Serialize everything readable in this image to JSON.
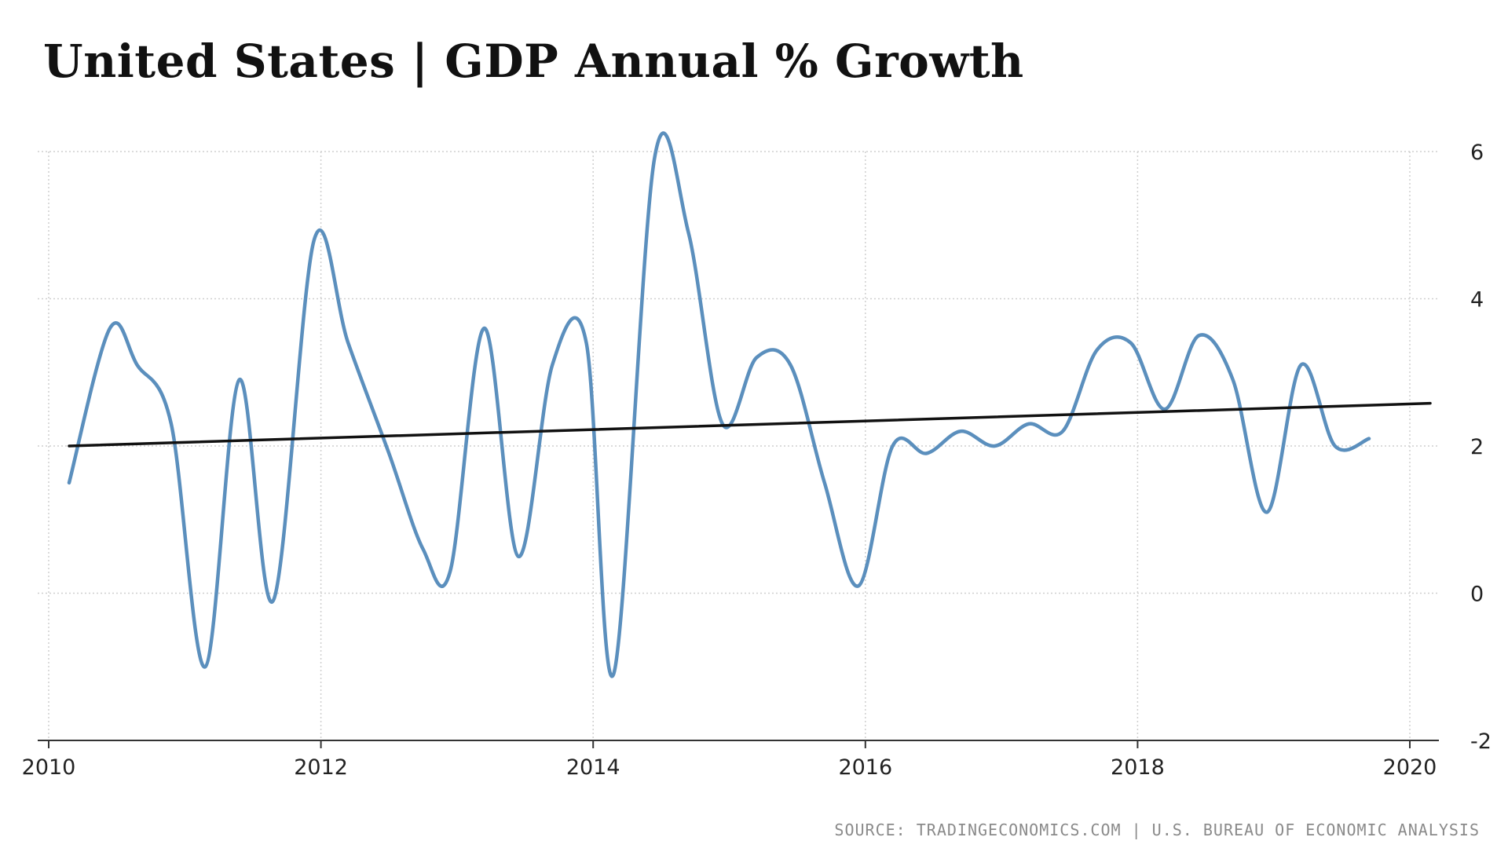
{
  "chart_data": {
    "type": "line",
    "title": "United States | GDP Annual % Growth",
    "source": "SOURCE: TRADINGECONOMICS.COM | U.S. BUREAU OF ECONOMIC ANALYSIS",
    "xlabel": "",
    "ylabel": "",
    "xlim": [
      2010,
      2020.2
    ],
    "ylim": [
      -2,
      6
    ],
    "x_ticks": [
      "2010",
      "2012",
      "2014",
      "2016",
      "2018",
      "2020"
    ],
    "y_ticks": [
      "6",
      "4",
      "2",
      "0",
      "-2"
    ],
    "grid": true,
    "legend": "none",
    "y_axis_position": "right",
    "series": [
      {
        "color": "#5b8fbd",
        "x": [
          2010.15,
          2010.45,
          2010.65,
          2010.9,
          2011.15,
          2011.4,
          2011.65,
          2011.95,
          2012.2,
          2012.5,
          2012.75,
          2012.95,
          2013.2,
          2013.45,
          2013.7,
          2013.95,
          2014.15,
          2014.45,
          2014.7,
          2014.95,
          2015.2,
          2015.45,
          2015.7,
          2015.95,
          2016.2,
          2016.45,
          2016.7,
          2016.95,
          2017.2,
          2017.45,
          2017.7,
          2017.95,
          2018.2,
          2018.45,
          2018.7,
          2018.95,
          2019.2,
          2019.45,
          2019.7
        ],
        "values": [
          1.5,
          3.6,
          3.1,
          2.3,
          -1.0,
          2.9,
          -0.1,
          4.8,
          3.4,
          1.9,
          0.6,
          0.3,
          3.6,
          0.5,
          3.1,
          3.4,
          -1.1,
          5.9,
          4.9,
          2.3,
          3.2,
          3.1,
          1.5,
          0.1,
          2.0,
          1.9,
          2.2,
          2.0,
          2.3,
          2.2,
          3.3,
          3.4,
          2.5,
          3.5,
          2.9,
          1.1,
          3.1,
          2.0,
          2.1
        ]
      },
      {
        "color": "#111111",
        "x": [
          2010.15,
          2020.15
        ],
        "values": [
          2.0,
          2.58
        ]
      }
    ]
  }
}
